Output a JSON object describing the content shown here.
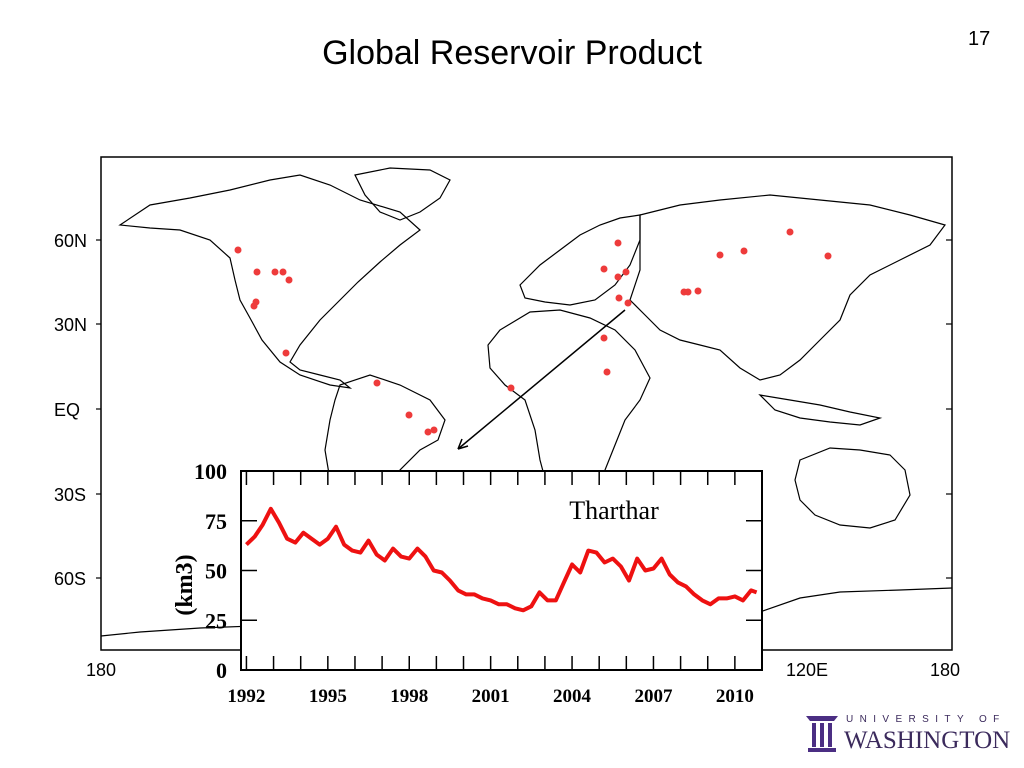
{
  "slide": {
    "number": "17",
    "title": "Global Reservoir Product"
  },
  "map": {
    "lat_labels": [
      "60N",
      "30N",
      "EQ",
      "30S",
      "60S"
    ],
    "lon_labels": [
      "180",
      "120E",
      "180"
    ],
    "reservoir_marker_color": "#ee3b3b"
  },
  "chart_data": {
    "type": "line",
    "title": "Tharthar",
    "ylabel": "(km3)",
    "ylim": [
      0,
      100
    ],
    "xlim": [
      1991.8,
      2011.0
    ],
    "y_ticks": [
      0,
      25,
      50,
      75,
      100
    ],
    "x_tick_labels": [
      "1992",
      "1995",
      "1998",
      "2001",
      "2004",
      "2007",
      "2010"
    ],
    "line_color": "#ee1111",
    "series": [
      {
        "x": [
          1992.0,
          1992.3,
          1992.6,
          1992.9,
          1993.2,
          1993.5,
          1993.8,
          1994.1,
          1994.4,
          1994.7,
          1995.0,
          1995.3,
          1995.6,
          1995.9,
          1996.2,
          1996.5,
          1996.8,
          1997.1,
          1997.4,
          1997.7,
          1998.0,
          1998.3,
          1998.6,
          1998.9,
          1999.2,
          1999.5,
          1999.8,
          2000.1,
          2000.4,
          2000.7,
          2001.0,
          2001.3,
          2001.6,
          2001.9,
          2002.2,
          2002.5,
          2002.8,
          2003.1,
          2003.4,
          2003.7,
          2004.0,
          2004.3,
          2004.6,
          2004.9,
          2005.2,
          2005.5,
          2005.8,
          2006.1,
          2006.4,
          2006.7,
          2007.0,
          2007.3,
          2007.6,
          2007.9,
          2008.2,
          2008.5,
          2008.8,
          2009.1,
          2009.4,
          2009.7,
          2010.0,
          2010.3,
          2010.6,
          2010.8
        ],
        "y": [
          63,
          67,
          73,
          81,
          74,
          66,
          64,
          69,
          66,
          63,
          66,
          72,
          63,
          60,
          59,
          65,
          58,
          55,
          61,
          57,
          56,
          61,
          57,
          50,
          49,
          45,
          40,
          38,
          38,
          36,
          35,
          33,
          33,
          31,
          30,
          32,
          39,
          35,
          35,
          44,
          53,
          49,
          60,
          59,
          54,
          56,
          52,
          45,
          56,
          50,
          51,
          56,
          48,
          44,
          42,
          38,
          35,
          33,
          36,
          36,
          37,
          35,
          40,
          39
        ]
      }
    ]
  }
}
